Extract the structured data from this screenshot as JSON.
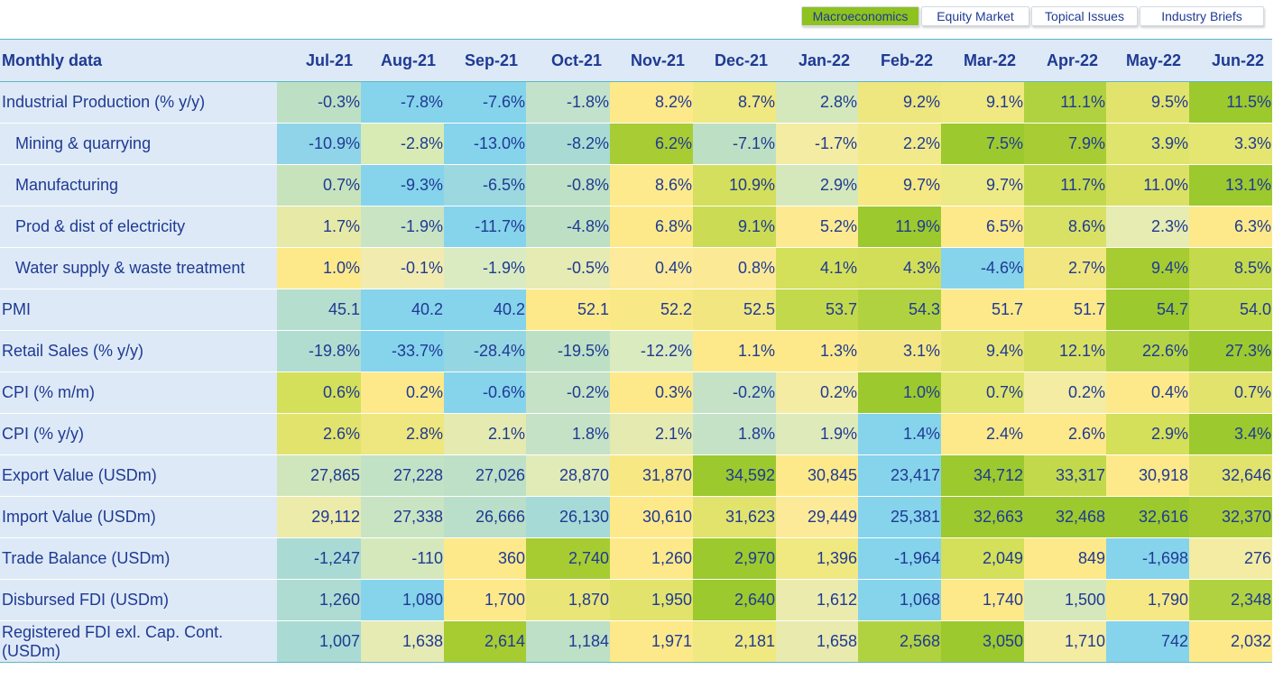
{
  "tabs": [
    {
      "label": "Macroeconomics",
      "active": true
    },
    {
      "label": "Equity Market",
      "active": false
    },
    {
      "label": "Topical Issues",
      "active": false
    },
    {
      "label": "Industry Briefs",
      "active": false
    }
  ],
  "table": {
    "header": "Monthly data",
    "columns": [
      "Jul-21",
      "Aug-21",
      "Sep-21",
      "Oct-21",
      "Nov-21",
      "Dec-21",
      "Jan-22",
      "Feb-22",
      "Mar-22",
      "Apr-22",
      "May-22",
      "Jun-22"
    ],
    "rows": [
      {
        "label": "Industrial Production (% y/y)",
        "indent": false,
        "values": [
          "-0.3%",
          "-7.8%",
          "-7.6%",
          "-1.8%",
          "8.2%",
          "8.7%",
          "2.8%",
          "9.2%",
          "9.1%",
          "11.1%",
          "9.5%",
          "11.5%"
        ],
        "colors": [
          "#bde0c4",
          "#86d3ec",
          "#86d3ec",
          "#c2e2cb",
          "#fde98a",
          "#f0e880",
          "#d5e8bb",
          "#eee67e",
          "#f0e880",
          "#b1d240",
          "#e2e36d",
          "#9cc92e"
        ]
      },
      {
        "label": "Mining & quarrying",
        "indent": true,
        "values": [
          "-10.9%",
          "-2.8%",
          "-13.0%",
          "-8.2%",
          "6.2%",
          "-7.1%",
          "-1.7%",
          "2.2%",
          "7.5%",
          "7.9%",
          "3.9%",
          "3.3%"
        ],
        "colors": [
          "#8fd4e9",
          "#d9ebb4",
          "#86d3ec",
          "#a9dbd4",
          "#a8cc33",
          "#bde0c4",
          "#f3eca2",
          "#f2ea8a",
          "#9cc92e",
          "#a8cc33",
          "#dfe46d",
          "#e5e571"
        ]
      },
      {
        "label": "Manufacturing",
        "indent": true,
        "values": [
          "0.7%",
          "-9.3%",
          "-6.5%",
          "-0.8%",
          "8.6%",
          "10.9%",
          "2.9%",
          "9.7%",
          "9.7%",
          "11.7%",
          "11.0%",
          "13.1%"
        ],
        "colors": [
          "#c7e3bc",
          "#86d3ec",
          "#9cd8df",
          "#bee0c6",
          "#fdea8d",
          "#d4df5d",
          "#d5e8bb",
          "#f6e983",
          "#ecea84",
          "#c3d94c",
          "#dbe165",
          "#9cc92e"
        ]
      },
      {
        "label": "Prod & dist of electricity",
        "indent": true,
        "values": [
          "1.7%",
          "-1.9%",
          "-11.7%",
          "-4.8%",
          "6.8%",
          "9.1%",
          "5.2%",
          "11.9%",
          "6.5%",
          "8.6%",
          "2.3%",
          "6.3%"
        ],
        "colors": [
          "#e6eaa6",
          "#c9e4c3",
          "#86d3ec",
          "#bde0c4",
          "#fde98a",
          "#cbdc54",
          "#fdea90",
          "#9cc92e",
          "#fde98a",
          "#d9e165",
          "#e6ecb2",
          "#fde98a"
        ]
      },
      {
        "label": "Water supply & waste treatment",
        "indent": true,
        "values": [
          "1.0%",
          "-0.1%",
          "-1.9%",
          "-0.5%",
          "0.4%",
          "0.8%",
          "4.1%",
          "4.3%",
          "-4.6%",
          "2.7%",
          "9.4%",
          "8.5%"
        ],
        "colors": [
          "#fde98a",
          "#f2ebb0",
          "#dbebc1",
          "#e6eab3",
          "#fdea9a",
          "#fce996",
          "#d4df5a",
          "#d3de58",
          "#86d3ec",
          "#f2e680",
          "#a6cc32",
          "#c4d94c"
        ]
      },
      {
        "label": "PMI",
        "indent": false,
        "values": [
          "45.1",
          "40.2",
          "40.2",
          "52.1",
          "52.2",
          "52.5",
          "53.7",
          "54.3",
          "51.7",
          "51.7",
          "54.7",
          "54.0"
        ],
        "colors": [
          "#b5dece",
          "#86d3ec",
          "#86d3ec",
          "#fde98a",
          "#f8e886",
          "#f2e680",
          "#c3d94c",
          "#b1d240",
          "#fde98a",
          "#fde98a",
          "#9cc92e",
          "#bfd848"
        ]
      },
      {
        "label": "Retail Sales (% y/y)",
        "indent": false,
        "values": [
          "-19.8%",
          "-33.7%",
          "-28.4%",
          "-19.5%",
          "-12.2%",
          "1.1%",
          "1.3%",
          "3.1%",
          "9.4%",
          "12.1%",
          "22.6%",
          "27.3%"
        ],
        "colors": [
          "#b1ddd0",
          "#86d3ec",
          "#95d6e3",
          "#bde0c4",
          "#dbebc0",
          "#fde98a",
          "#fde98a",
          "#f4e783",
          "#e6e574",
          "#d8e062",
          "#b4d444",
          "#9cc92e"
        ]
      },
      {
        "label": "CPI (% m/m)",
        "indent": false,
        "values": [
          "0.6%",
          "0.2%",
          "-0.6%",
          "-0.2%",
          "0.3%",
          "-0.2%",
          "0.2%",
          "1.0%",
          "0.7%",
          "0.2%",
          "0.4%",
          "0.7%"
        ],
        "colors": [
          "#d4df5a",
          "#fde98a",
          "#86d3ec",
          "#c5e2c6",
          "#fde98a",
          "#c5e2c6",
          "#f3eca2",
          "#9cc92e",
          "#dfe46d",
          "#f3eca2",
          "#fde98a",
          "#e2e36d"
        ]
      },
      {
        "label": "CPI (% y/y)",
        "indent": false,
        "values": [
          "2.6%",
          "2.8%",
          "2.1%",
          "1.8%",
          "2.1%",
          "1.8%",
          "1.9%",
          "1.4%",
          "2.4%",
          "2.6%",
          "2.9%",
          "3.4%"
        ],
        "colors": [
          "#e2e36d",
          "#eee67e",
          "#e5eab1",
          "#c5e2c6",
          "#e5eab1",
          "#c5e2c6",
          "#dfeabb",
          "#86d3ec",
          "#fde98a",
          "#fde98a",
          "#d4df5a",
          "#9cc92e"
        ]
      },
      {
        "label": "Export Value (USDm)",
        "indent": false,
        "values": [
          "27,865",
          "27,228",
          "27,026",
          "28,870",
          "31,870",
          "34,592",
          "30,845",
          "23,417",
          "34,712",
          "33,317",
          "30,918",
          "32,646"
        ],
        "colors": [
          "#cfe6bc",
          "#c2e2c6",
          "#bde0c6",
          "#e1ebb8",
          "#f7e884",
          "#9cc92e",
          "#fde98a",
          "#86d3ec",
          "#9cc92e",
          "#c3d94c",
          "#fde98a",
          "#e2e36d"
        ]
      },
      {
        "label": "Import Value (USDm)",
        "indent": false,
        "values": [
          "29,112",
          "27,338",
          "26,666",
          "26,130",
          "30,610",
          "31,623",
          "29,449",
          "25,381",
          "32,663",
          "32,468",
          "32,616",
          "32,370"
        ],
        "colors": [
          "#ecebaa",
          "#c9e4c3",
          "#b9dfca",
          "#a6dad7",
          "#fde98a",
          "#e2e36d",
          "#fdea98",
          "#86d3ec",
          "#9cc92e",
          "#9cc92e",
          "#9cc92e",
          "#a6cc32"
        ]
      },
      {
        "label": "Trade Balance (USDm)",
        "indent": false,
        "values": [
          "-1,247",
          "-110",
          "360",
          "2,740",
          "1,260",
          "2,970",
          "1,396",
          "-1,964",
          "2,049",
          "849",
          "-1,698",
          "276"
        ],
        "colors": [
          "#a9dbd4",
          "#d5e8bb",
          "#fde98a",
          "#a6cc32",
          "#fde98a",
          "#9cc92e",
          "#f0e880",
          "#86d3ec",
          "#d4df5a",
          "#fde98a",
          "#86d3ec",
          "#f3eca2"
        ]
      },
      {
        "label": "Disbursed FDI (USDm)",
        "indent": false,
        "values": [
          "1,260",
          "1,080",
          "1,700",
          "1,870",
          "1,950",
          "2,640",
          "1,612",
          "1,068",
          "1,740",
          "1,500",
          "1,790",
          "2,348"
        ],
        "colors": [
          "#aedcd2",
          "#86d3ec",
          "#fde98a",
          "#e9e577",
          "#e2e36d",
          "#9cc92e",
          "#ebebae",
          "#86d3ec",
          "#fde98a",
          "#d5e8bb",
          "#f7e886",
          "#b1d240"
        ]
      },
      {
        "label": "Registered FDI exl. Cap. Cont. (USDm)",
        "indent": false,
        "values": [
          "1,007",
          "1,638",
          "2,614",
          "1,184",
          "1,971",
          "2,181",
          "1,658",
          "2,568",
          "3,050",
          "1,710",
          "742",
          "2,032"
        ],
        "colors": [
          "#a9dbd4",
          "#e6eab3",
          "#a6cc32",
          "#bde0c6",
          "#fde98a",
          "#f0e880",
          "#e9eaae",
          "#b1d240",
          "#9cc92e",
          "#f3eca2",
          "#86d3ec",
          "#fde98a"
        ]
      }
    ]
  }
}
